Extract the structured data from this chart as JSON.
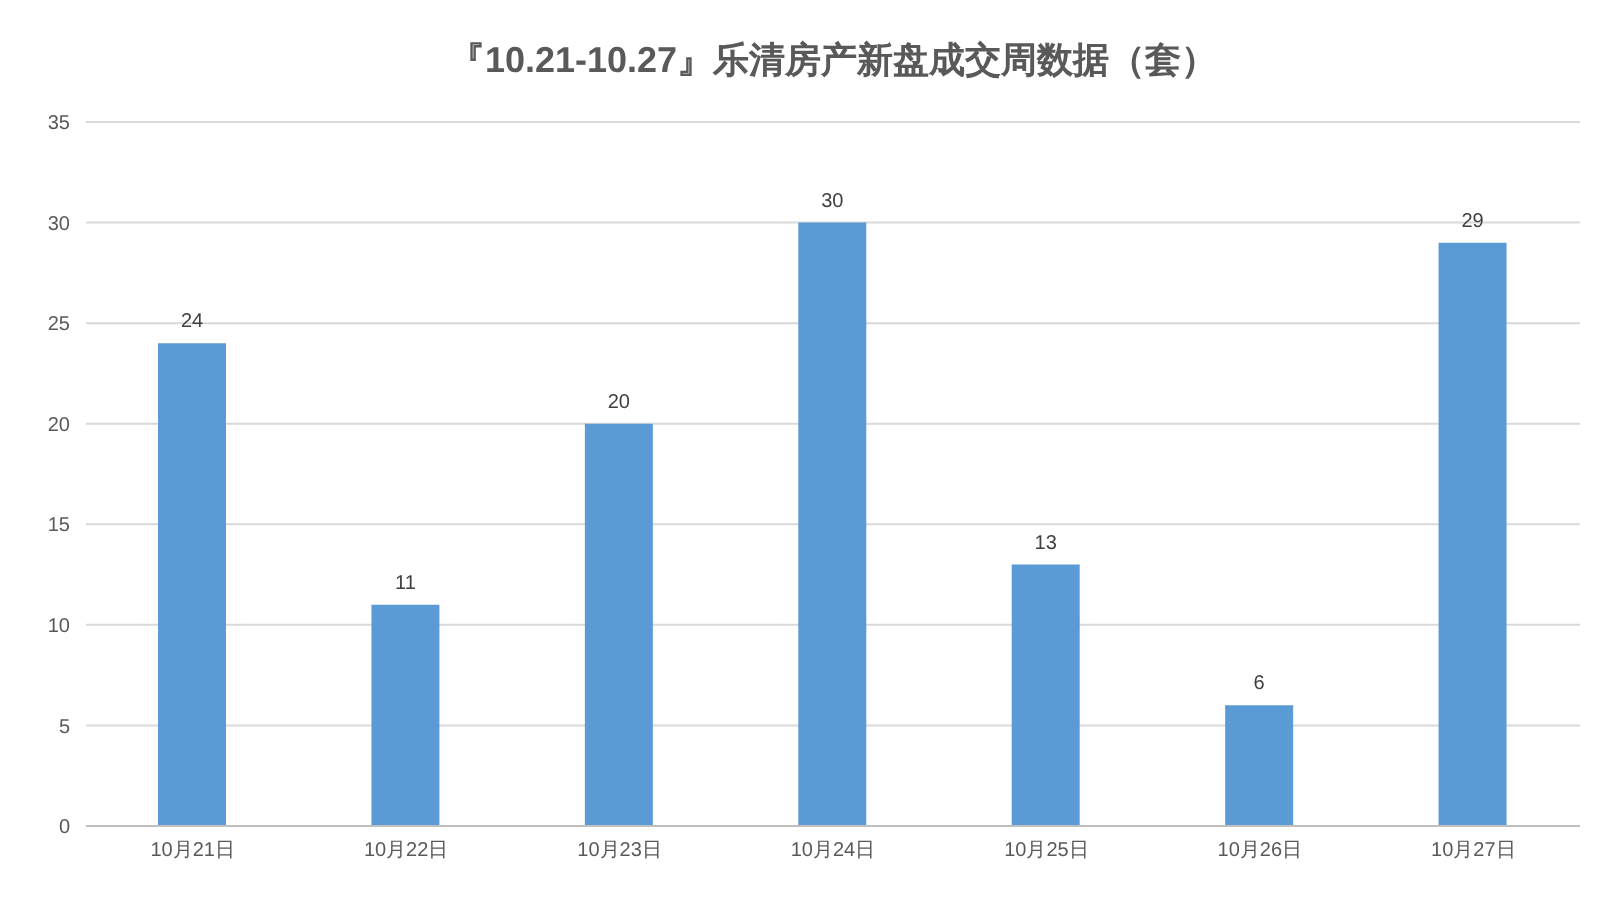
{
  "chart_data": {
    "type": "bar",
    "title": "『10.21-10.27』乐清房产新盘成交周数据（套）",
    "categories": [
      "10月21日",
      "10月22日",
      "10月23日",
      "10月24日",
      "10月25日",
      "10月26日",
      "10月27日"
    ],
    "values": [
      24,
      11,
      20,
      30,
      13,
      6,
      29
    ],
    "color": "#5b9bd5",
    "ylim": [
      0,
      35
    ],
    "yticks": [
      0,
      5,
      10,
      15,
      20,
      25,
      30,
      35
    ],
    "grid": "y",
    "data_labels": true
  }
}
